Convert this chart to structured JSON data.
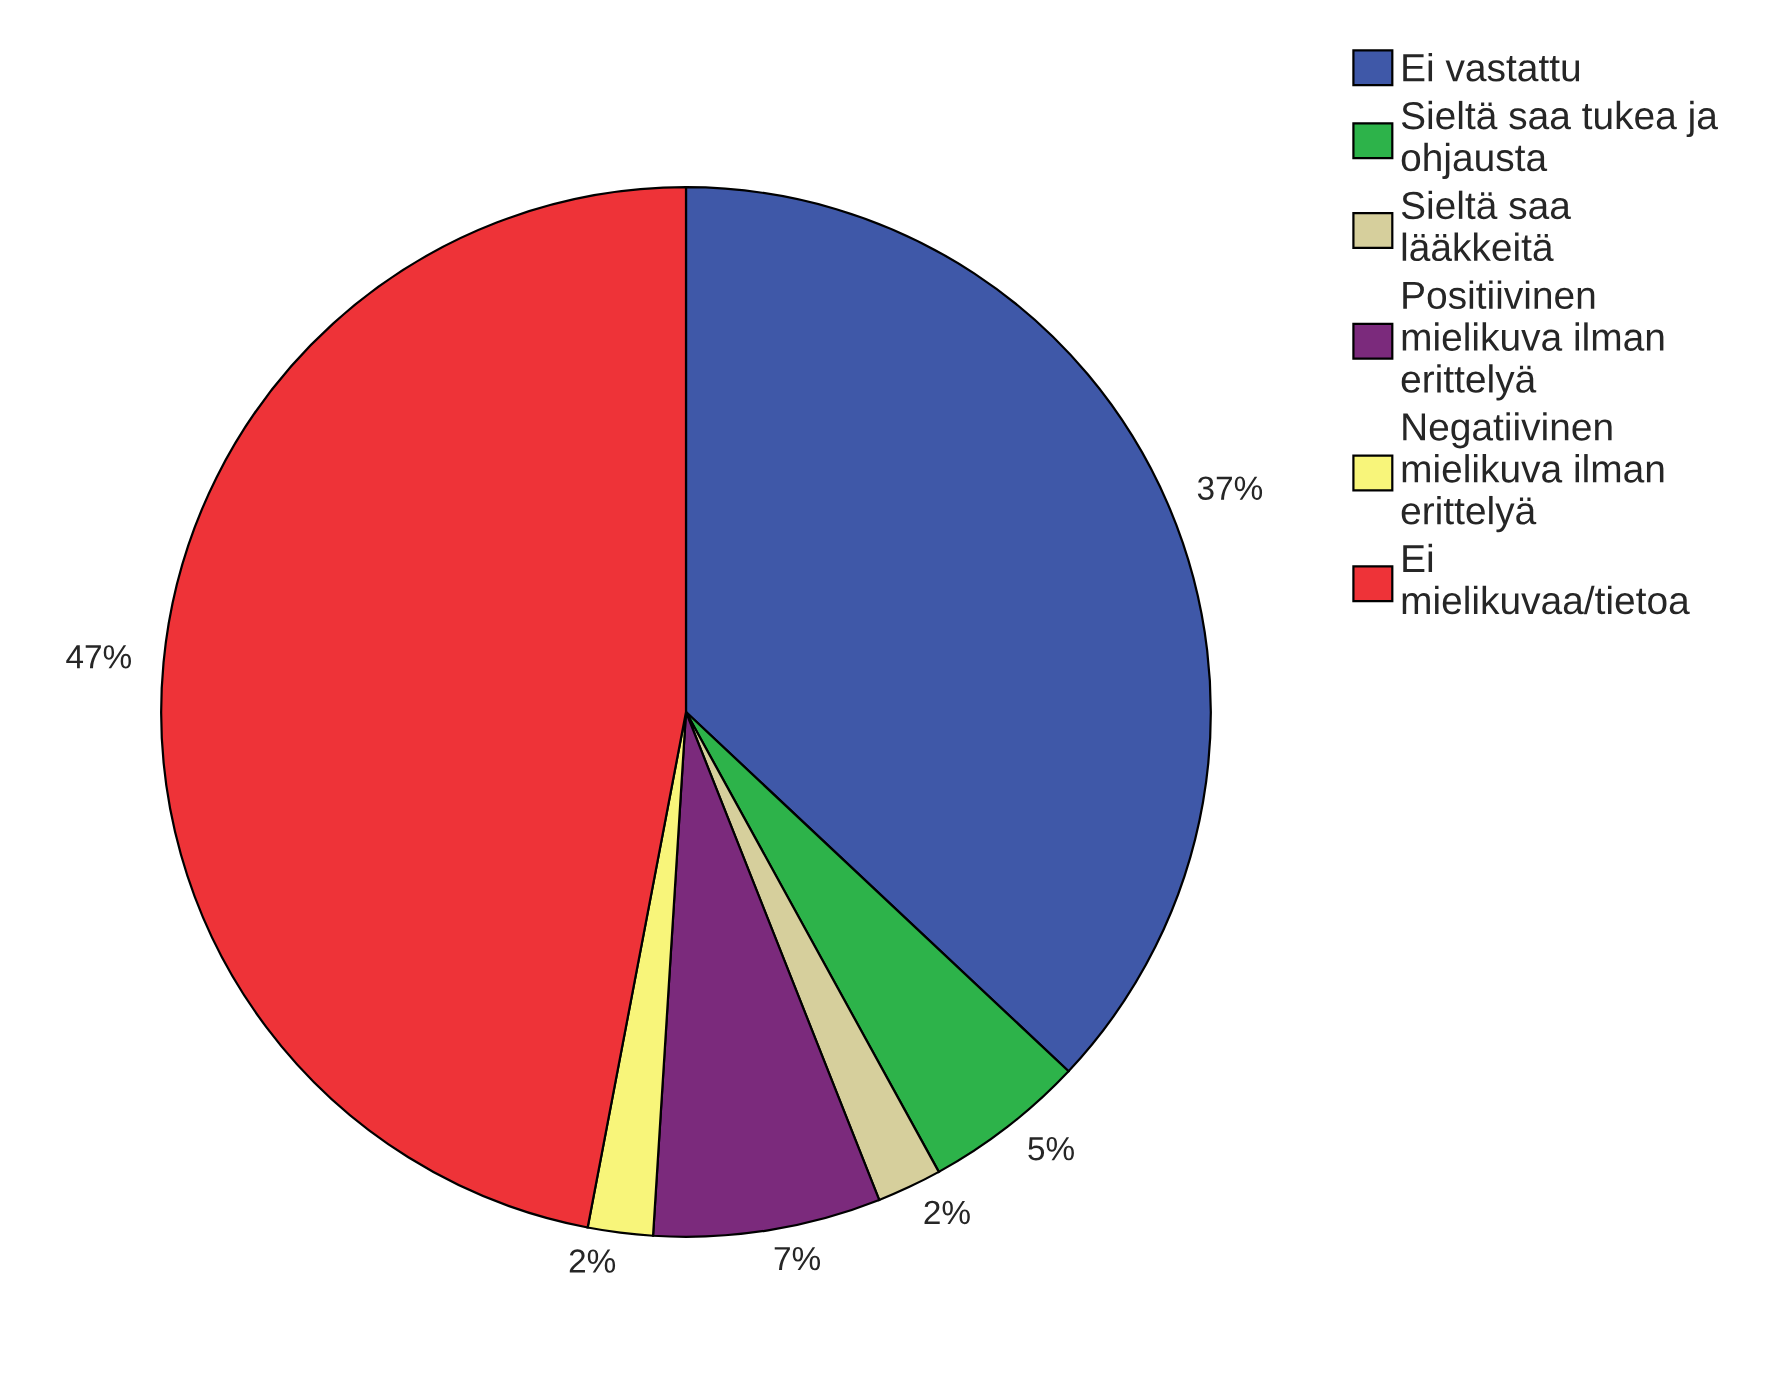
{
  "chart_data": {
    "type": "pie",
    "categories": [
      "Ei vastattu",
      "Sieltä saa tukea ja\nohjausta",
      "Sieltä saa\nlääkkeitä",
      "Positiivinen\nmielikuva ilman\nerittelyä",
      "Negatiivinen\nmielikuva ilman\nerittelyä",
      "Ei\nmielikuvaa/tietoa"
    ],
    "values": [
      37,
      5,
      2,
      7,
      2,
      47
    ],
    "value_labels": [
      "37%",
      "5%",
      "2%",
      "7%",
      "2%",
      "47%"
    ],
    "colors": [
      "#3f58a8",
      "#2db34a",
      "#d6cf9c",
      "#7b2a7c",
      "#f8f57a",
      "#ee3338"
    ],
    "legend": "top right"
  }
}
